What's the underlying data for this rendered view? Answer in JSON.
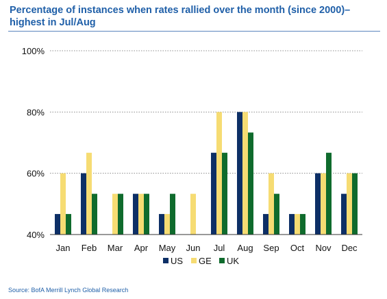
{
  "chart_data": {
    "type": "bar",
    "title": "Percentage of instances when rates rallied over the month (since 2000)– highest in Jul/Aug",
    "xlabel": "",
    "ylabel": "",
    "categories": [
      "Jan",
      "Feb",
      "Mar",
      "Apr",
      "May",
      "Jun",
      "Jul",
      "Aug",
      "Sep",
      "Oct",
      "Nov",
      "Dec"
    ],
    "series": [
      {
        "name": "US",
        "color": "#0d2f66",
        "values": [
          46.7,
          60,
          40,
          53.3,
          46.7,
          40,
          66.7,
          80,
          46.7,
          46.7,
          60,
          53.3
        ]
      },
      {
        "name": "GE",
        "color": "#f6dc73",
        "values": [
          60,
          66.7,
          53.3,
          53.3,
          46.7,
          53.3,
          80,
          80,
          60,
          46.7,
          60,
          60
        ]
      },
      {
        "name": "UK",
        "color": "#0f6b2d",
        "values": [
          46.7,
          53.3,
          53.3,
          53.3,
          53.3,
          40,
          66.7,
          73.3,
          53.3,
          46.7,
          66.7,
          60
        ]
      }
    ],
    "ylim": [
      40,
      100
    ],
    "yticks": [
      "40%",
      "60%",
      "80%",
      "100%"
    ],
    "ytick_values": [
      40,
      60,
      80,
      100
    ],
    "grid": "horizontal dotted",
    "legend": "bottom"
  },
  "source": "Source: BofA Merrill Lynch Global Research"
}
